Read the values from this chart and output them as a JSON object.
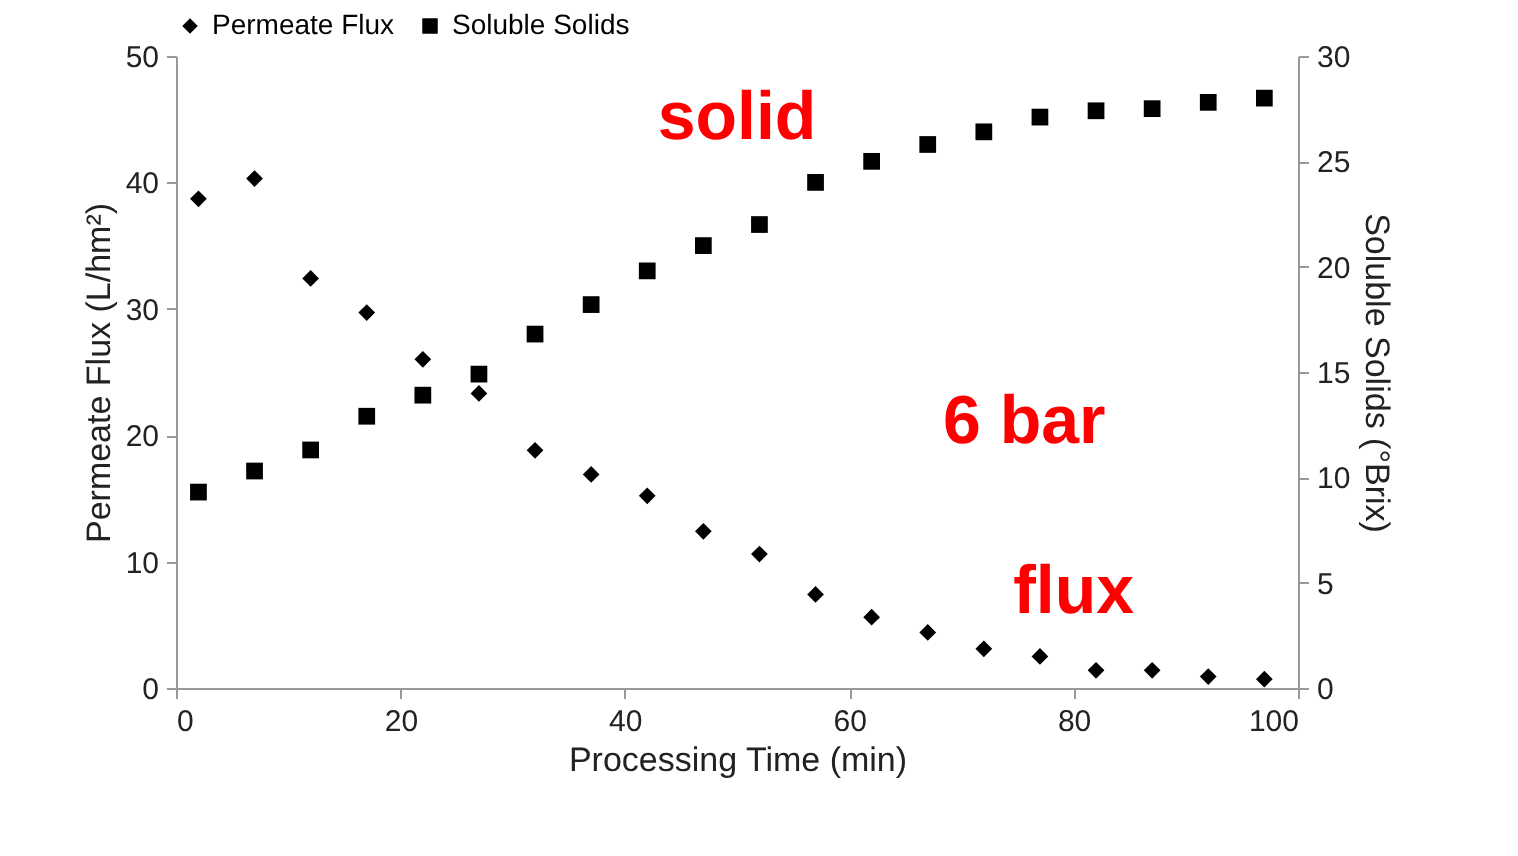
{
  "chart_data": {
    "type": "scatter",
    "xlabel": "Processing Time (min)",
    "ylabel": "Permeate Flux (L/hm²)",
    "y2label": "Soluble Solids (°Brix)",
    "x": [
      2,
      7,
      12,
      17,
      22,
      27,
      32,
      37,
      42,
      47,
      52,
      57,
      62,
      67,
      72,
      77,
      82,
      87,
      92,
      97
    ],
    "series": [
      {
        "name": "Permeate Flux",
        "color": "#000000",
        "marker": "diamond",
        "values": [
          38.7,
          40.3,
          32.4,
          29.7,
          26,
          23.3,
          18.8,
          16.9,
          15.2,
          12.4,
          10.6,
          7.4,
          5.6,
          4.4,
          3.1,
          2.5,
          1.4,
          1.4,
          0.9,
          0.7
        ]
      },
      {
        "name": "Soluble Solids",
        "color": "#000000",
        "marker": "square",
        "axis": "y2",
        "values": [
          9.3,
          10.3,
          11.3,
          12.9,
          13.9,
          14.9,
          16.8,
          18.2,
          19.8,
          21,
          22,
          24,
          25,
          25.8,
          26.4,
          27.1,
          27.4,
          27.5,
          27.8,
          28
        ]
      }
    ],
    "xlim": [
      0,
      100
    ],
    "xticks": [
      0,
      20,
      40,
      60,
      80,
      100
    ],
    "ylim": [
      0,
      50
    ],
    "yticks": [
      0,
      10,
      20,
      30,
      40,
      50
    ],
    "y2lim": [
      0,
      30
    ],
    "y2ticks": [
      0,
      5,
      10,
      15,
      20,
      25,
      30
    ],
    "annotations": [
      "solid",
      "6 bar",
      "flux"
    ],
    "grid": false,
    "legend": "top"
  }
}
